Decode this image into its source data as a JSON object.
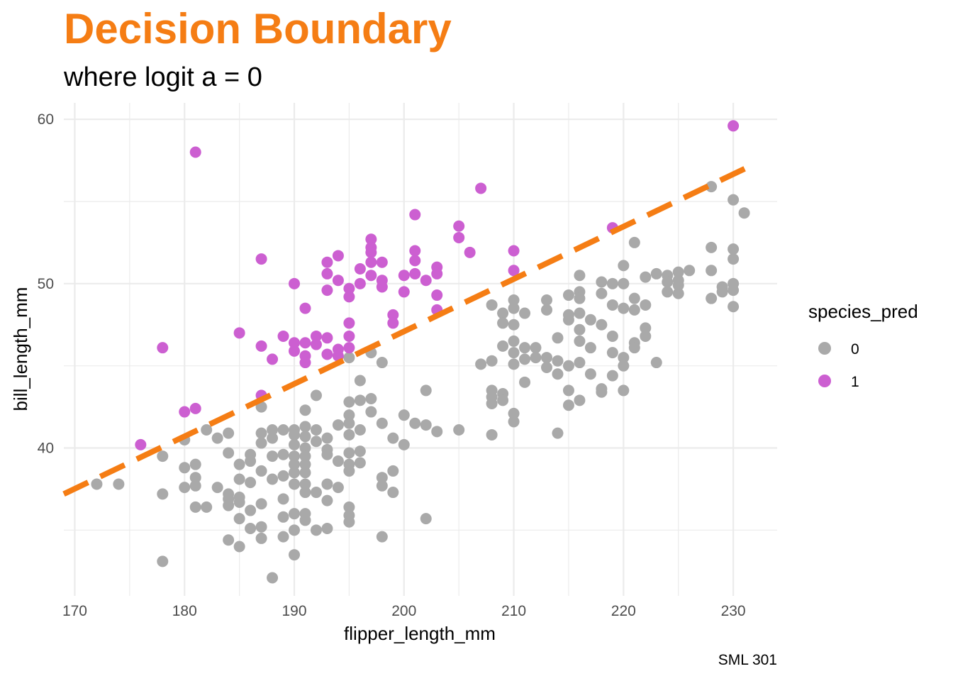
{
  "chart_data": {
    "type": "scatter",
    "title": "Decision Boundary",
    "subtitle": "where logit a = 0",
    "caption": "SML 301",
    "xlabel": "flipper_length_mm",
    "ylabel": "bill_length_mm",
    "xlim": [
      169,
      234
    ],
    "ylim": [
      31,
      61
    ],
    "x_ticks": [
      170,
      180,
      190,
      200,
      210,
      220,
      230
    ],
    "y_ticks": [
      40,
      50,
      60
    ],
    "grid": true,
    "legend": {
      "title": "species_pred",
      "placement": "right"
    },
    "colors": {
      "title": "#F57D14",
      "boundary": "#F57D14",
      "class_0": "#A9A9A9",
      "class_1": "#CC5FD1",
      "grid": "#EBEBEB"
    },
    "boundary_line": {
      "style": "dashed",
      "points": [
        [
          169,
          37.2
        ],
        [
          232,
          57.3
        ]
      ]
    },
    "series": [
      {
        "name": "0",
        "points": [
          [
            172,
            37.8
          ],
          [
            174,
            37.8
          ],
          [
            178,
            39.5
          ],
          [
            178,
            37.2
          ],
          [
            178,
            33.1
          ],
          [
            180,
            40.5
          ],
          [
            180,
            38.8
          ],
          [
            180,
            37.6
          ],
          [
            181,
            39.0
          ],
          [
            181,
            38.2
          ],
          [
            181,
            37.7
          ],
          [
            181,
            36.4
          ],
          [
            182,
            41.1
          ],
          [
            182,
            36.4
          ],
          [
            183,
            40.6
          ],
          [
            183,
            37.6
          ],
          [
            184,
            40.9
          ],
          [
            184,
            39.7
          ],
          [
            184,
            37.2
          ],
          [
            184,
            36.9
          ],
          [
            184,
            36.5
          ],
          [
            184,
            34.4
          ],
          [
            185,
            39.0
          ],
          [
            185,
            38.1
          ],
          [
            185,
            37.0
          ],
          [
            185,
            36.7
          ],
          [
            185,
            35.7
          ],
          [
            185,
            34.0
          ],
          [
            186,
            39.6
          ],
          [
            186,
            39.2
          ],
          [
            186,
            37.9
          ],
          [
            186,
            36.2
          ],
          [
            186,
            35.1
          ],
          [
            187,
            42.5
          ],
          [
            187,
            40.9
          ],
          [
            187,
            40.3
          ],
          [
            187,
            38.6
          ],
          [
            187,
            36.6
          ],
          [
            187,
            35.2
          ],
          [
            187,
            34.5
          ],
          [
            188,
            41.1
          ],
          [
            188,
            40.6
          ],
          [
            188,
            39.5
          ],
          [
            188,
            38.1
          ],
          [
            188,
            32.1
          ],
          [
            189,
            41.1
          ],
          [
            189,
            39.6
          ],
          [
            189,
            38.3
          ],
          [
            189,
            36.9
          ],
          [
            189,
            35.8
          ],
          [
            189,
            34.6
          ],
          [
            190,
            41.1
          ],
          [
            190,
            40.8
          ],
          [
            190,
            40.2
          ],
          [
            190,
            39.5
          ],
          [
            190,
            39.0
          ],
          [
            190,
            38.5
          ],
          [
            190,
            37.8
          ],
          [
            190,
            36.0
          ],
          [
            190,
            35.0
          ],
          [
            190,
            33.5
          ],
          [
            191,
            41.3
          ],
          [
            191,
            40.7
          ],
          [
            191,
            40.0
          ],
          [
            191,
            39.5
          ],
          [
            191,
            39.0
          ],
          [
            191,
            38.5
          ],
          [
            191,
            37.8
          ],
          [
            191,
            37.3
          ],
          [
            191,
            36.0
          ],
          [
            191,
            35.6
          ],
          [
            191,
            42.3
          ],
          [
            192,
            41.1
          ],
          [
            192,
            40.4
          ],
          [
            192,
            37.3
          ],
          [
            192,
            35.0
          ],
          [
            192,
            43.2
          ],
          [
            193,
            40.6
          ],
          [
            193,
            39.9
          ],
          [
            193,
            39.6
          ],
          [
            193,
            37.8
          ],
          [
            193,
            36.8
          ],
          [
            193,
            35.1
          ],
          [
            194,
            41.4
          ],
          [
            194,
            39.2
          ],
          [
            194,
            37.6
          ],
          [
            195,
            42.8
          ],
          [
            195,
            42.0
          ],
          [
            195,
            41.5
          ],
          [
            195,
            40.8
          ],
          [
            195,
            39.7
          ],
          [
            195,
            39.0
          ],
          [
            195,
            38.6
          ],
          [
            195,
            36.4
          ],
          [
            195,
            35.9
          ],
          [
            195,
            35.5
          ],
          [
            195,
            45.5
          ],
          [
            196,
            44.1
          ],
          [
            196,
            42.9
          ],
          [
            196,
            41.1
          ],
          [
            196,
            39.8
          ],
          [
            196,
            39.1
          ],
          [
            197,
            45.8
          ],
          [
            197,
            43.0
          ],
          [
            197,
            42.2
          ],
          [
            198,
            45.2
          ],
          [
            198,
            41.5
          ],
          [
            198,
            38.2
          ],
          [
            198,
            37.7
          ],
          [
            198,
            34.6
          ],
          [
            199,
            40.6
          ],
          [
            199,
            38.6
          ],
          [
            199,
            37.3
          ],
          [
            200,
            42.0
          ],
          [
            200,
            40.2
          ],
          [
            201,
            41.5
          ],
          [
            202,
            43.5
          ],
          [
            202,
            41.4
          ],
          [
            202,
            35.7
          ],
          [
            203,
            41.0
          ],
          [
            205,
            41.1
          ],
          [
            207,
            45.1
          ],
          [
            208,
            48.7
          ],
          [
            208,
            45.3
          ],
          [
            208,
            43.5
          ],
          [
            208,
            43.1
          ],
          [
            208,
            42.7
          ],
          [
            208,
            40.8
          ],
          [
            209,
            48.2
          ],
          [
            209,
            47.6
          ],
          [
            209,
            46.2
          ],
          [
            209,
            43.3
          ],
          [
            209,
            42.9
          ],
          [
            210,
            49.0
          ],
          [
            210,
            48.5
          ],
          [
            210,
            47.5
          ],
          [
            210,
            46.5
          ],
          [
            210,
            45.8
          ],
          [
            210,
            45.1
          ],
          [
            210,
            42.1
          ],
          [
            210,
            41.6
          ],
          [
            211,
            48.2
          ],
          [
            211,
            46.1
          ],
          [
            211,
            45.4
          ],
          [
            211,
            44.0
          ],
          [
            212,
            46.1
          ],
          [
            212,
            45.5
          ],
          [
            213,
            49.0
          ],
          [
            213,
            48.4
          ],
          [
            213,
            45.5
          ],
          [
            213,
            44.9
          ],
          [
            214,
            46.7
          ],
          [
            214,
            45.3
          ],
          [
            214,
            44.5
          ],
          [
            214,
            40.9
          ],
          [
            215,
            49.3
          ],
          [
            215,
            48.1
          ],
          [
            215,
            45.0
          ],
          [
            215,
            43.5
          ],
          [
            215,
            42.6
          ],
          [
            215,
            47.8
          ],
          [
            216,
            50.5
          ],
          [
            216,
            49.5
          ],
          [
            216,
            49.1
          ],
          [
            216,
            48.2
          ],
          [
            216,
            47.2
          ],
          [
            216,
            46.5
          ],
          [
            216,
            45.2
          ],
          [
            216,
            42.9
          ],
          [
            217,
            47.8
          ],
          [
            217,
            46.1
          ],
          [
            217,
            44.5
          ],
          [
            218,
            50.1
          ],
          [
            218,
            49.4
          ],
          [
            218,
            47.5
          ],
          [
            218,
            43.6
          ],
          [
            218,
            43.4
          ],
          [
            219,
            50.0
          ],
          [
            219,
            48.7
          ],
          [
            219,
            46.8
          ],
          [
            219,
            45.8
          ],
          [
            219,
            44.4
          ],
          [
            220,
            51.1
          ],
          [
            220,
            50.0
          ],
          [
            220,
            48.5
          ],
          [
            220,
            45.5
          ],
          [
            220,
            45.0
          ],
          [
            220,
            43.5
          ],
          [
            221,
            52.5
          ],
          [
            221,
            49.1
          ],
          [
            221,
            48.4
          ],
          [
            221,
            46.4
          ],
          [
            221,
            46.1
          ],
          [
            222,
            50.4
          ],
          [
            222,
            48.7
          ],
          [
            222,
            47.3
          ],
          [
            222,
            46.8
          ],
          [
            223,
            50.6
          ],
          [
            223,
            45.2
          ],
          [
            224,
            50.5
          ],
          [
            224,
            50.1
          ],
          [
            224,
            49.5
          ],
          [
            225,
            50.7
          ],
          [
            225,
            50.2
          ],
          [
            225,
            49.9
          ],
          [
            225,
            49.4
          ],
          [
            226,
            50.8
          ],
          [
            228,
            55.9
          ],
          [
            228,
            52.2
          ],
          [
            228,
            50.8
          ],
          [
            228,
            49.1
          ],
          [
            229,
            49.8
          ],
          [
            229,
            49.5
          ],
          [
            230,
            55.1
          ],
          [
            230,
            52.1
          ],
          [
            230,
            51.5
          ],
          [
            230,
            50.0
          ],
          [
            230,
            49.6
          ],
          [
            230,
            48.6
          ],
          [
            231,
            54.3
          ]
        ]
      },
      {
        "name": "1",
        "points": [
          [
            176,
            40.2
          ],
          [
            178,
            46.1
          ],
          [
            180,
            42.2
          ],
          [
            181,
            42.4
          ],
          [
            181,
            58.0
          ],
          [
            187,
            51.5
          ],
          [
            187,
            46.2
          ],
          [
            187,
            43.2
          ],
          [
            185,
            47.0
          ],
          [
            188,
            45.4
          ],
          [
            189,
            46.8
          ],
          [
            190,
            50.0
          ],
          [
            190,
            46.4
          ],
          [
            190,
            45.9
          ],
          [
            191,
            48.5
          ],
          [
            191,
            46.4
          ],
          [
            191,
            45.6
          ],
          [
            191,
            45.2
          ],
          [
            192,
            46.8
          ],
          [
            192,
            46.3
          ],
          [
            193,
            51.3
          ],
          [
            193,
            50.6
          ],
          [
            193,
            49.6
          ],
          [
            193,
            46.7
          ],
          [
            193,
            45.7
          ],
          [
            194,
            51.7
          ],
          [
            194,
            50.2
          ],
          [
            194,
            46.0
          ],
          [
            194,
            45.6
          ],
          [
            195,
            49.7
          ],
          [
            195,
            49.2
          ],
          [
            195,
            47.6
          ],
          [
            195,
            46.8
          ],
          [
            195,
            46.1
          ],
          [
            196,
            50.9
          ],
          [
            196,
            50.0
          ],
          [
            197,
            52.7
          ],
          [
            197,
            52.2
          ],
          [
            197,
            51.9
          ],
          [
            197,
            51.3
          ],
          [
            197,
            50.5
          ],
          [
            198,
            51.3
          ],
          [
            198,
            50.2
          ],
          [
            198,
            49.8
          ],
          [
            199,
            48.1
          ],
          [
            199,
            47.6
          ],
          [
            200,
            50.5
          ],
          [
            200,
            49.5
          ],
          [
            201,
            54.2
          ],
          [
            201,
            52.0
          ],
          [
            201,
            51.4
          ],
          [
            201,
            50.6
          ],
          [
            202,
            50.2
          ],
          [
            203,
            51.0
          ],
          [
            203,
            50.6
          ],
          [
            203,
            49.3
          ],
          [
            203,
            48.4
          ],
          [
            205,
            53.5
          ],
          [
            205,
            52.8
          ],
          [
            206,
            51.9
          ],
          [
            207,
            55.8
          ],
          [
            210,
            52.0
          ],
          [
            210,
            50.8
          ],
          [
            219,
            53.4
          ],
          [
            230,
            59.6
          ]
        ]
      }
    ]
  }
}
